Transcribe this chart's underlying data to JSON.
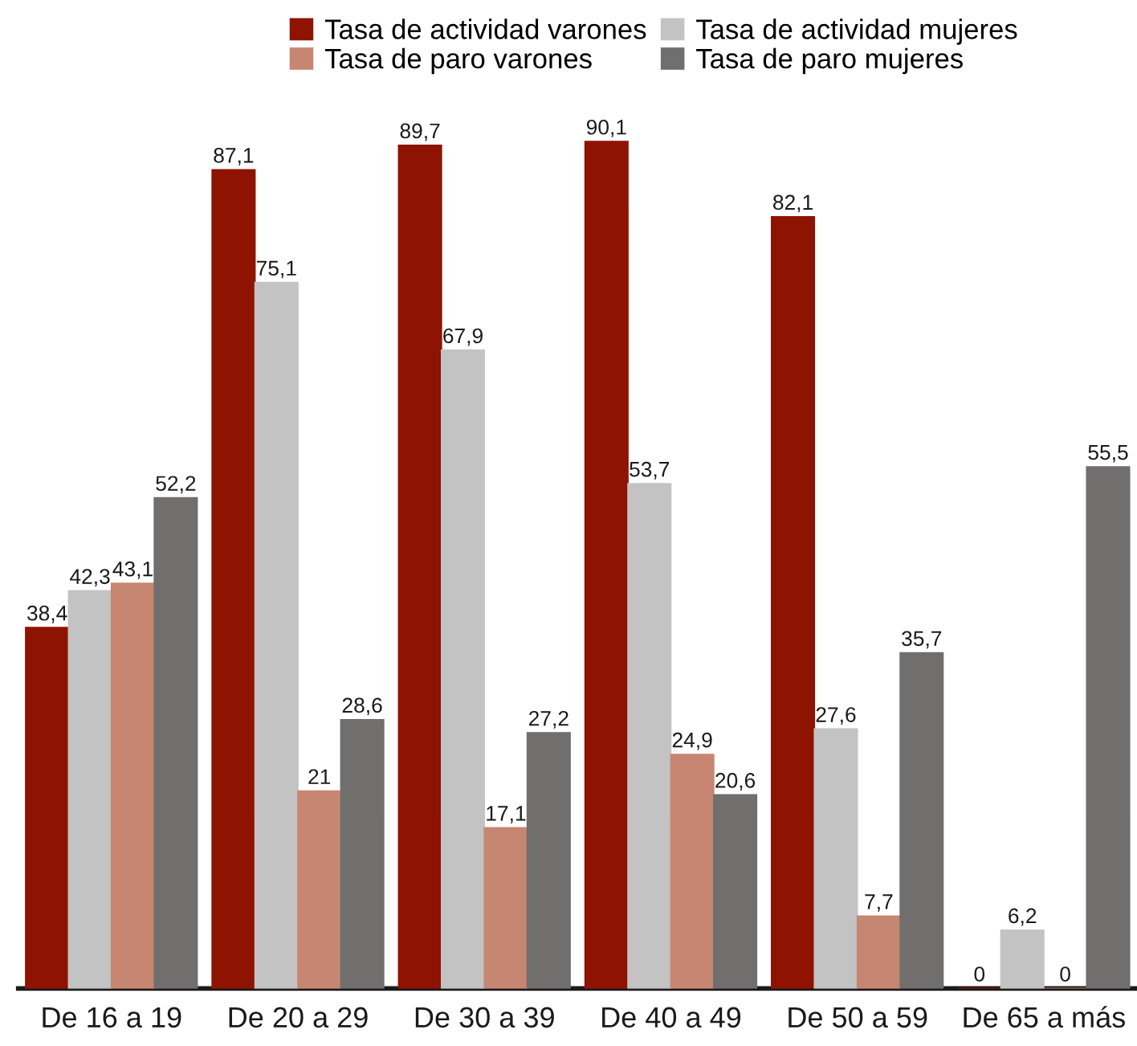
{
  "chart_data": {
    "type": "bar",
    "categories": [
      "De 16 a 19",
      "De 20 a 29",
      "De 30 a 39",
      "De 40 a 49",
      "De 50 a 59",
      "De 65 a más"
    ],
    "series": [
      {
        "name": "Tasa de actividad varones",
        "color": "#8e1300",
        "values": [
          38.4,
          87.1,
          89.7,
          90.1,
          82.1,
          0
        ],
        "value_labels": [
          "38,4",
          "87,1",
          "89,7",
          "90,1",
          "82,1",
          "0"
        ]
      },
      {
        "name": "Tasa de actividad mujeres",
        "color": "#c3c3c3",
        "values": [
          42.3,
          75.1,
          67.9,
          53.7,
          27.6,
          6.2
        ],
        "value_labels": [
          "42,3",
          "75,1",
          "67,9",
          "53,7",
          "27,6",
          "6,2"
        ]
      },
      {
        "name": "Tasa de paro varones",
        "color": "#c78672",
        "values": [
          43.1,
          21,
          17.1,
          24.9,
          7.7,
          0
        ],
        "value_labels": [
          "43,1",
          "21",
          "17,1",
          "24,9",
          "7,7",
          "0"
        ]
      },
      {
        "name": "Tasa de paro mujeres",
        "color": "#706f6e",
        "values": [
          52.2,
          28.6,
          27.2,
          20.6,
          35.7,
          55.5
        ],
        "value_labels": [
          "52,2",
          "28,6",
          "27,2",
          "20,6",
          "35,7",
          "55,5"
        ]
      }
    ],
    "legend": "top"
  }
}
